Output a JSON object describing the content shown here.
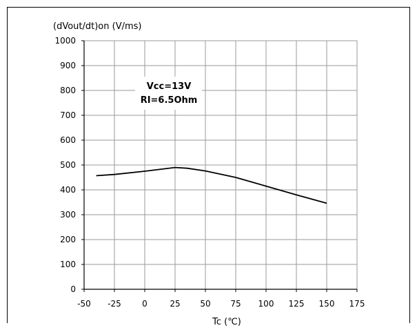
{
  "chart_data": {
    "type": "line",
    "title": "",
    "ylabel": "(dVout/dt)on (V/ms)",
    "xlabel": "Tc (℃)",
    "xlim": [
      -50,
      175
    ],
    "ylim": [
      0,
      1000
    ],
    "x_ticks": [
      -50,
      -25,
      0,
      25,
      50,
      75,
      100,
      125,
      150,
      175
    ],
    "y_ticks": [
      0,
      100,
      200,
      300,
      400,
      500,
      600,
      700,
      800,
      900,
      1000
    ],
    "grid": true,
    "annotations": [
      "Vcc=13V",
      "RI=6.5Ohm"
    ],
    "series": [
      {
        "x": [
          -40,
          -25,
          0,
          25,
          35,
          50,
          75,
          100,
          125,
          150
        ],
        "values": [
          457,
          462,
          475,
          490,
          487,
          476,
          450,
          415,
          380,
          346
        ]
      }
    ]
  }
}
